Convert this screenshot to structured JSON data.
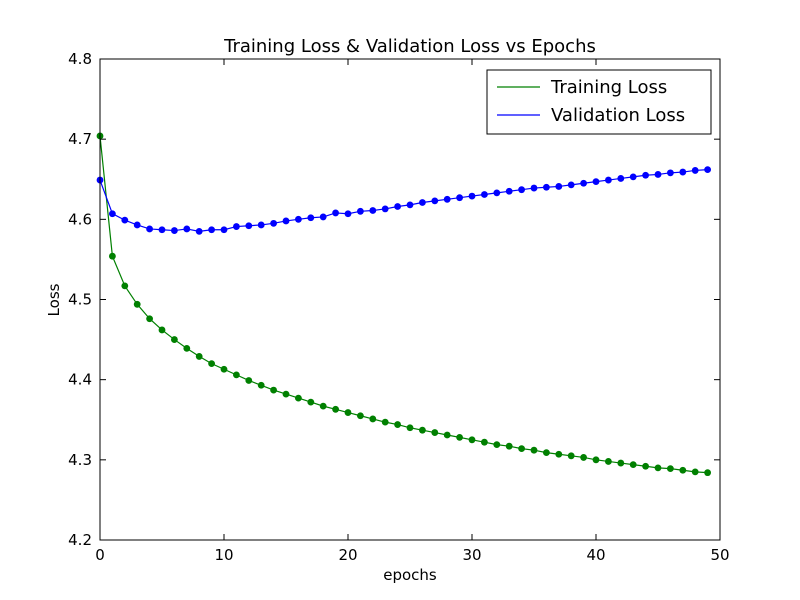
{
  "chart_data": {
    "type": "line",
    "title": "Training Loss & Validation Loss vs Epochs",
    "xlabel": "epochs",
    "ylabel": "Loss",
    "xlim": [
      0,
      50
    ],
    "ylim": [
      4.2,
      4.8
    ],
    "xticks": [
      "0",
      "10",
      "20",
      "30",
      "40",
      "50"
    ],
    "yticks": [
      "4.2",
      "4.3",
      "4.4",
      "4.5",
      "4.6",
      "4.7",
      "4.8"
    ],
    "grid": false,
    "legend_position": "top-right",
    "x": [
      0,
      1,
      2,
      3,
      4,
      5,
      6,
      7,
      8,
      9,
      10,
      11,
      12,
      13,
      14,
      15,
      16,
      17,
      18,
      19,
      20,
      21,
      22,
      23,
      24,
      25,
      26,
      27,
      28,
      29,
      30,
      31,
      32,
      33,
      34,
      35,
      36,
      37,
      38,
      39,
      40,
      41,
      42,
      43,
      44,
      45,
      46,
      47,
      48,
      49
    ],
    "series": [
      {
        "name": "Training Loss",
        "color": "#008000",
        "values": [
          4.704,
          4.554,
          4.517,
          4.494,
          4.476,
          4.462,
          4.45,
          4.439,
          4.429,
          4.42,
          4.413,
          4.406,
          4.399,
          4.393,
          4.387,
          4.382,
          4.377,
          4.372,
          4.367,
          4.363,
          4.359,
          4.355,
          4.351,
          4.347,
          4.344,
          4.34,
          4.337,
          4.334,
          4.331,
          4.328,
          4.325,
          4.322,
          4.319,
          4.317,
          4.314,
          4.312,
          4.309,
          4.307,
          4.305,
          4.303,
          4.3,
          4.298,
          4.296,
          4.294,
          4.292,
          4.29,
          4.289,
          4.287,
          4.285,
          4.284
        ]
      },
      {
        "name": "Validation Loss",
        "color": "#0000ff",
        "values": [
          4.649,
          4.607,
          4.599,
          4.593,
          4.588,
          4.587,
          4.586,
          4.588,
          4.585,
          4.587,
          4.587,
          4.591,
          4.592,
          4.593,
          4.595,
          4.598,
          4.6,
          4.602,
          4.603,
          4.608,
          4.607,
          4.61,
          4.611,
          4.613,
          4.616,
          4.618,
          4.621,
          4.623,
          4.625,
          4.627,
          4.629,
          4.631,
          4.633,
          4.635,
          4.637,
          4.639,
          4.64,
          4.641,
          4.643,
          4.645,
          4.647,
          4.649,
          4.651,
          4.653,
          4.655,
          4.656,
          4.658,
          4.659,
          4.661,
          4.662
        ]
      }
    ]
  }
}
